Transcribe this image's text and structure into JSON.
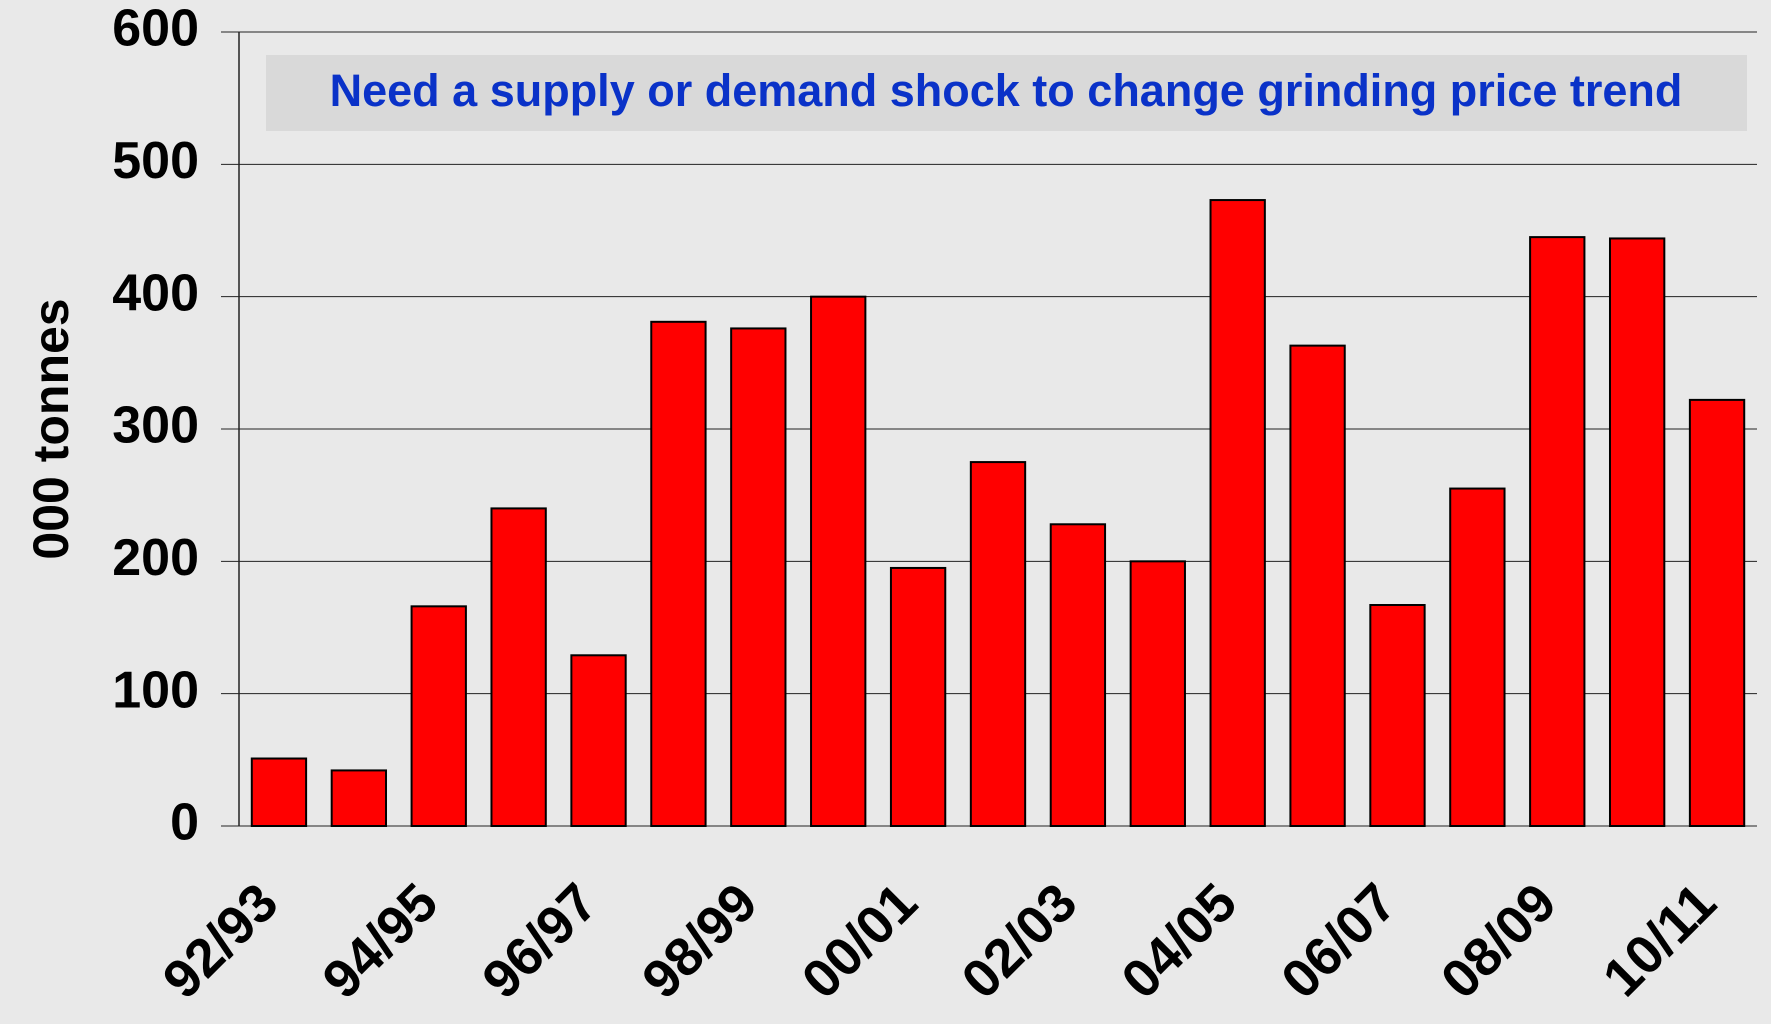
{
  "chart_data": {
    "type": "bar",
    "title": "Need a supply or demand shock to change grinding price trend",
    "y_label": "000 tonnes",
    "categories": [
      "92/93",
      null,
      "94/95",
      null,
      "96/97",
      null,
      "98/99",
      null,
      "00/01",
      null,
      "02/03",
      null,
      "04/05",
      null,
      "06/07",
      null,
      "08/09",
      null,
      "10/11"
    ],
    "values": [
      51,
      42,
      166,
      240,
      129,
      381,
      376,
      400,
      195,
      275,
      228,
      200,
      473,
      363,
      167,
      255,
      445,
      444,
      322
    ],
    "color": "#ff0000",
    "ylim": [
      0,
      600
    ],
    "yticks": [
      0,
      100,
      200,
      300,
      400,
      500,
      600
    ],
    "grid": true
  }
}
